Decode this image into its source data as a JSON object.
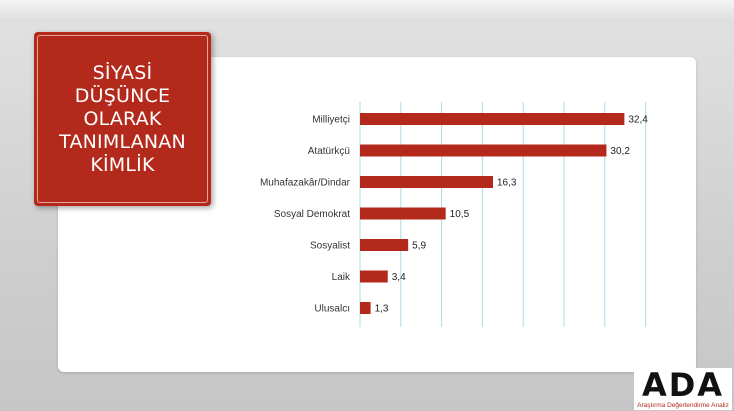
{
  "title": "SİYASİ DÜŞÜNCE OLARAK TANIMLANAN KİMLİK",
  "logo": {
    "mark": "ADA",
    "subtitle": "Araştırma Değerlendirme Analiz"
  },
  "colors": {
    "bar": "#b3291c",
    "title_box": "#b3291c",
    "grid": "#a9dde6"
  },
  "chart_data": {
    "type": "bar",
    "orientation": "horizontal",
    "categories": [
      "Milliyetçi",
      "Atatürkçü",
      "Muhafazakâr/Dindar",
      "Sosyal Demokrat",
      "Sosyalist",
      "Laik",
      "Ulusalcı"
    ],
    "values": [
      32.4,
      30.2,
      16.3,
      10.5,
      5.9,
      3.4,
      1.3
    ],
    "value_labels": [
      "32,4",
      "30,2",
      "16,3",
      "10,5",
      "5,9",
      "3,4",
      "1,3"
    ],
    "xlim": [
      0,
      35
    ],
    "grid": true,
    "title": "SİYASİ DÜŞÜNCE OLARAK TANIMLANAN KİMLİK",
    "xlabel": "",
    "ylabel": ""
  }
}
